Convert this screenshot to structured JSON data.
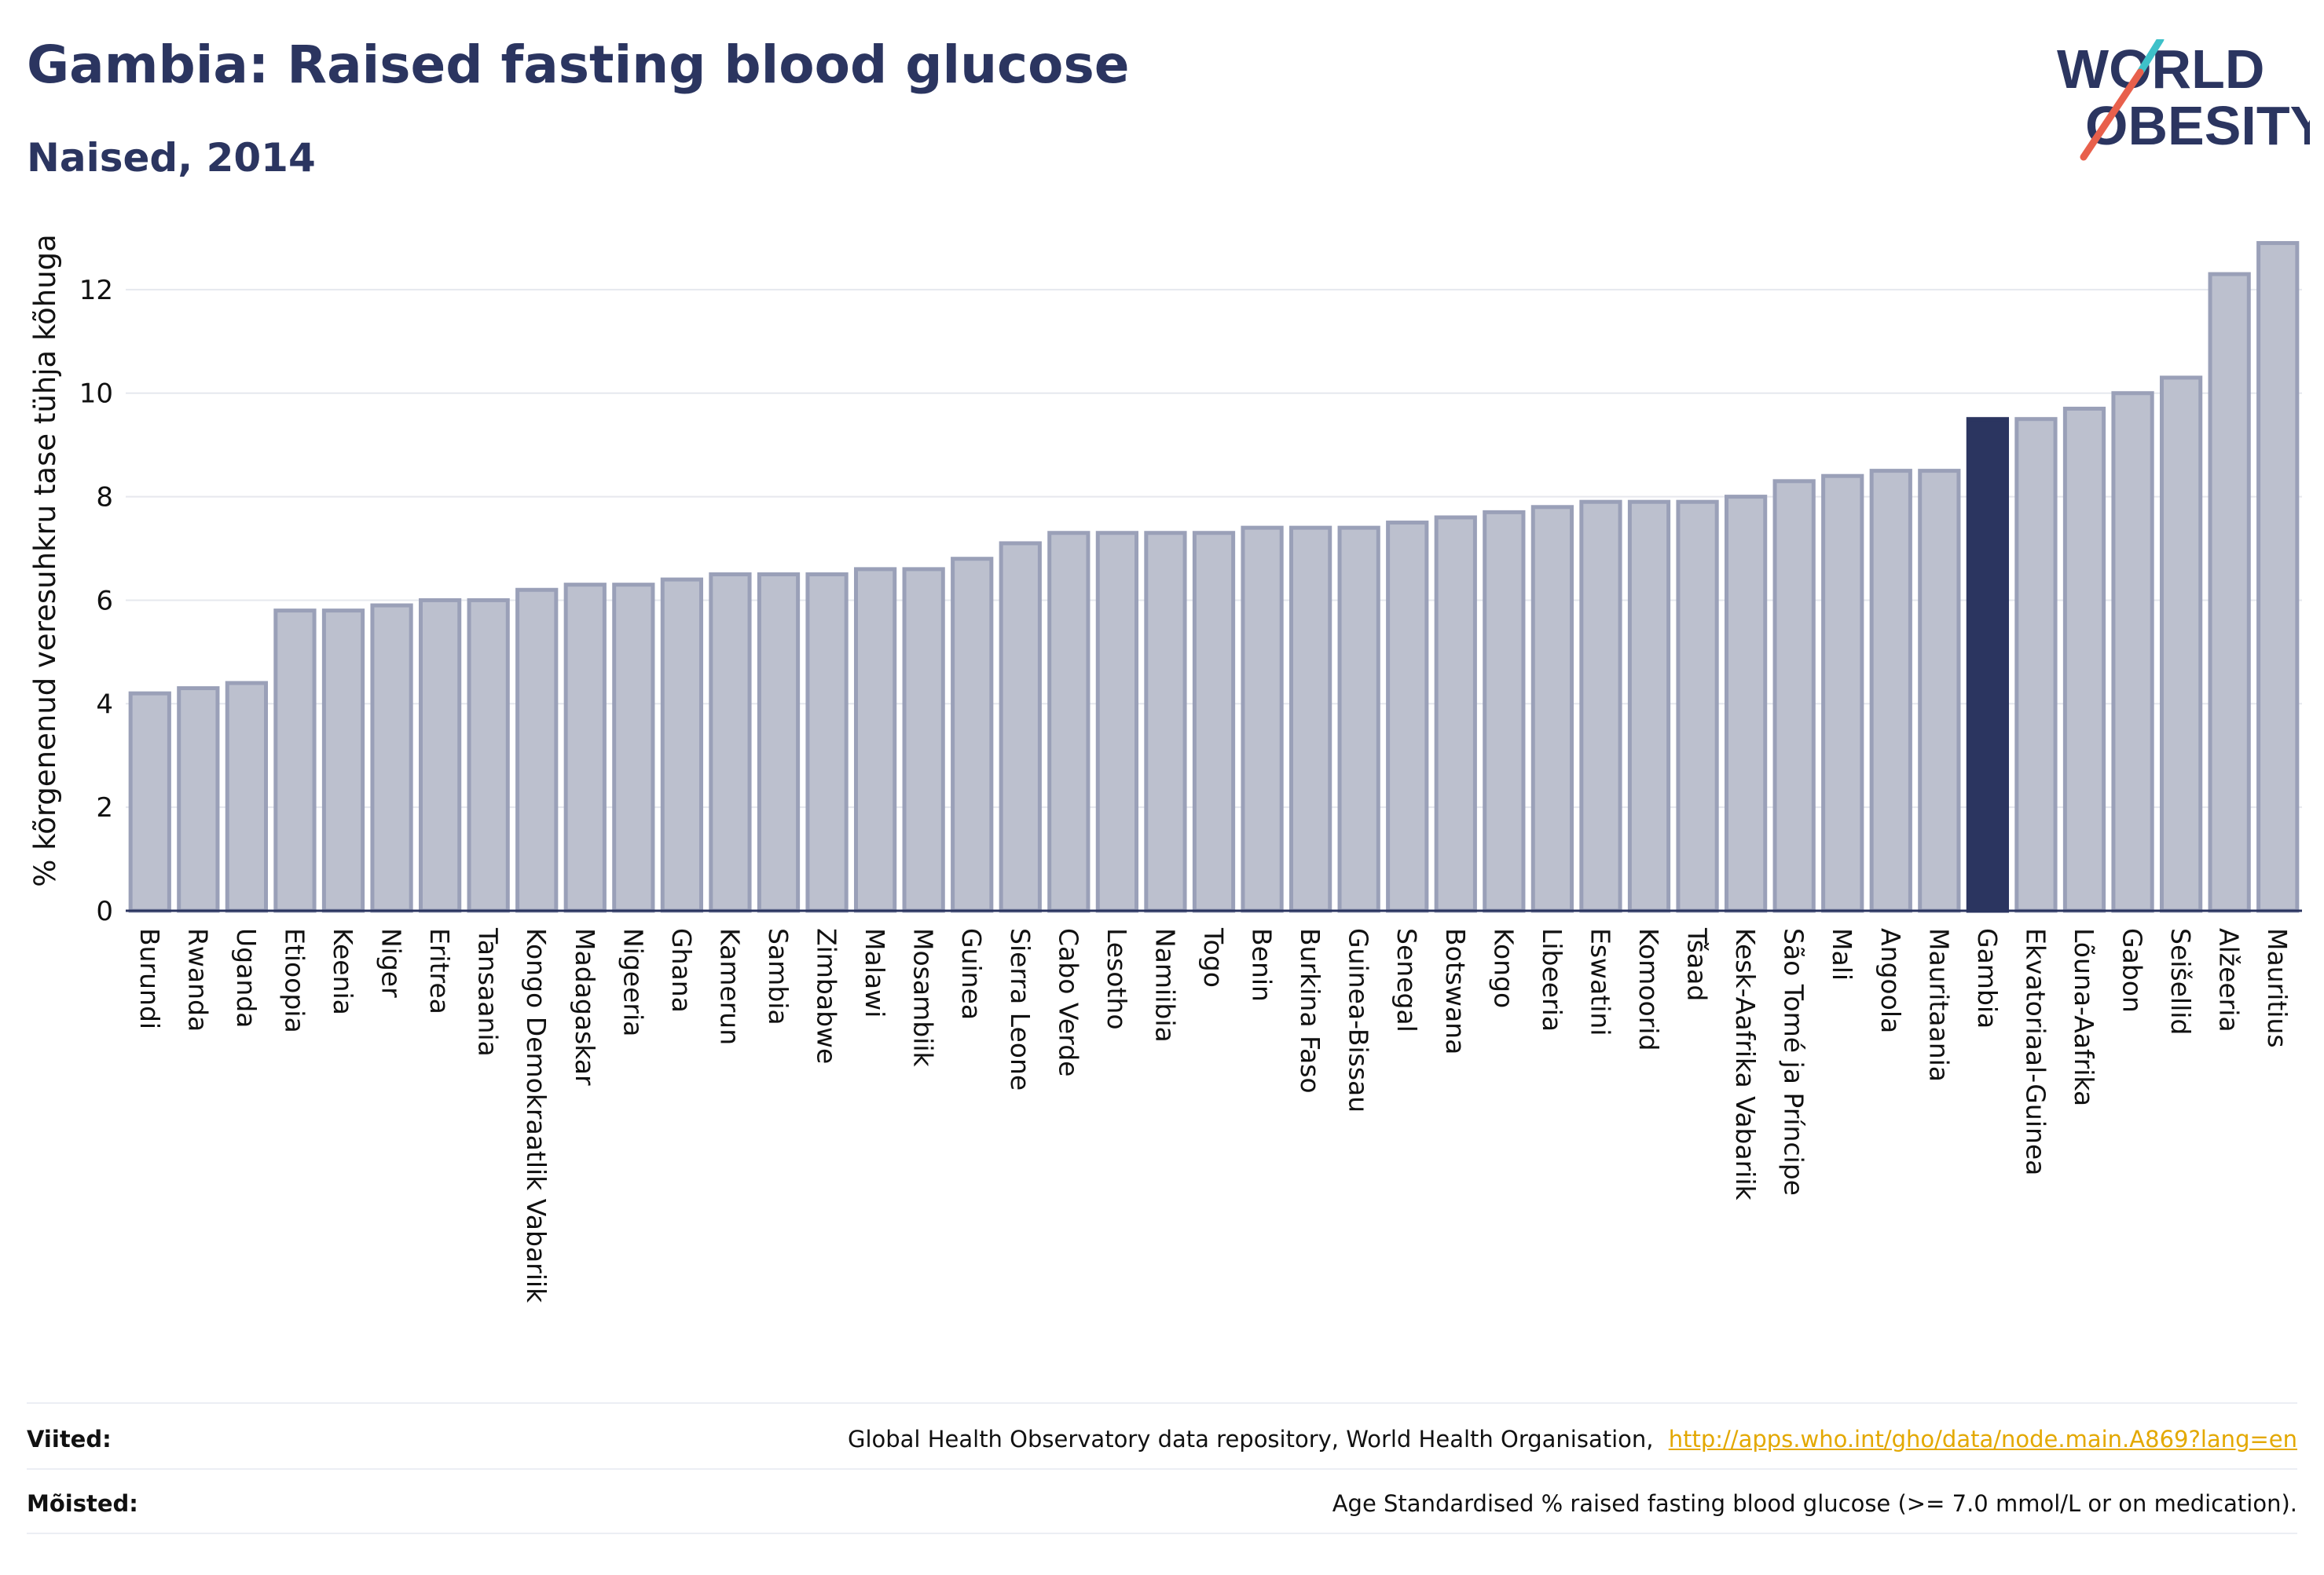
{
  "title": "Gambia: Raised fasting blood glucose",
  "subtitle": "Naised, 2014",
  "logo": {
    "line1": "WORLD",
    "line2": "OBESITY"
  },
  "colors": {
    "bar_fill": "#bcc0ce",
    "bar_stroke": "#9aa0b8",
    "highlight": "#2b3560",
    "grid": "#e6e8ee",
    "axis": "#2b3560",
    "link": "#e3a800",
    "logo_slash_teal": "#3ec1c9",
    "logo_slash_red": "#e8604c"
  },
  "chart_data": {
    "type": "bar",
    "ylabel": "% kõrgenenud veresuhkru tase tühja kõhuga",
    "xlabel": "",
    "ylim": [
      0,
      13.5
    ],
    "yticks": [
      0,
      2,
      4,
      6,
      8,
      10,
      12
    ],
    "grid": true,
    "highlight": "Gambia",
    "categories": [
      "Burundi",
      "Rwanda",
      "Uganda",
      "Etioopia",
      "Keenia",
      "Niger",
      "Eritrea",
      "Tansaania",
      "Kongo Demokraatlik Vabariik",
      "Madagaskar",
      "Nigeeria",
      "Ghana",
      "Kamerun",
      "Sambia",
      "Zimbabwe",
      "Malawi",
      "Mosambiik",
      "Guinea",
      "Sierra Leone",
      "Cabo Verde",
      "Lesotho",
      "Namiibia",
      "Togo",
      "Benin",
      "Burkina Faso",
      "Guinea-Bissau",
      "Senegal",
      "Botswana",
      "Kongo",
      "Libeeria",
      "Eswatini",
      "Komoorid",
      "Tšaad",
      "Kesk-Aafrika Vabariik",
      "São Tomé ja Príncipe",
      "Mali",
      "Angoola",
      "Mauritaania",
      "Gambia",
      "Ekvatoriaal-Guinea",
      "Lõuna-Aafrika",
      "Gabon",
      "Seišellid",
      "Alžeeria",
      "Mauritius"
    ],
    "values": [
      4.2,
      4.3,
      4.4,
      5.8,
      5.8,
      5.9,
      6.0,
      6.0,
      6.2,
      6.3,
      6.3,
      6.4,
      6.5,
      6.5,
      6.5,
      6.6,
      6.6,
      6.8,
      7.1,
      7.3,
      7.3,
      7.3,
      7.3,
      7.4,
      7.4,
      7.4,
      7.5,
      7.6,
      7.7,
      7.8,
      7.9,
      7.9,
      7.9,
      8.0,
      8.3,
      8.4,
      8.5,
      8.5,
      9.5,
      9.5,
      9.7,
      10.0,
      10.3,
      12.3,
      12.9
    ]
  },
  "footer": {
    "references_label": "Viited:",
    "references_text": "Global Health Observatory data repository, World Health Organisation,",
    "references_link": "http://apps.who.int/gho/data/node.main.A869?lang=en",
    "definitions_label": "Mõisted:",
    "definitions_text": "Age Standardised % raised fasting blood glucose (>= 7.0 mmol/L or on medication)."
  }
}
